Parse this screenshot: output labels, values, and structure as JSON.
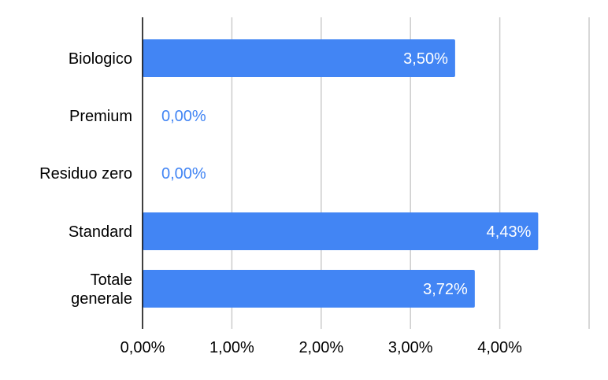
{
  "chart_data": {
    "type": "bar",
    "orientation": "horizontal",
    "categories": [
      "Biologico",
      "Premium",
      "Residuo zero",
      "Standard",
      "Totale generale"
    ],
    "values": [
      3.5,
      0.0,
      0.0,
      4.43,
      3.72
    ],
    "data_labels": [
      "3,50%",
      "0,00%",
      "0,00%",
      "4,43%",
      "3,72%"
    ],
    "x_ticks": [
      0,
      1,
      2,
      3,
      4,
      5
    ],
    "x_tick_labels": [
      "0,00%",
      "1,00%",
      "2,00%",
      "3,00%",
      "4,00%",
      ""
    ],
    "xlim": [
      0,
      5
    ],
    "title": "",
    "xlabel": "",
    "ylabel": "",
    "grid": true,
    "legend": "none",
    "colors": {
      "bar": "#4285f4",
      "label_inside": "#ffffff",
      "label_outside": "#4285f4",
      "gridline": "#cccccc",
      "axis": "#000000",
      "text": "#000000"
    }
  }
}
